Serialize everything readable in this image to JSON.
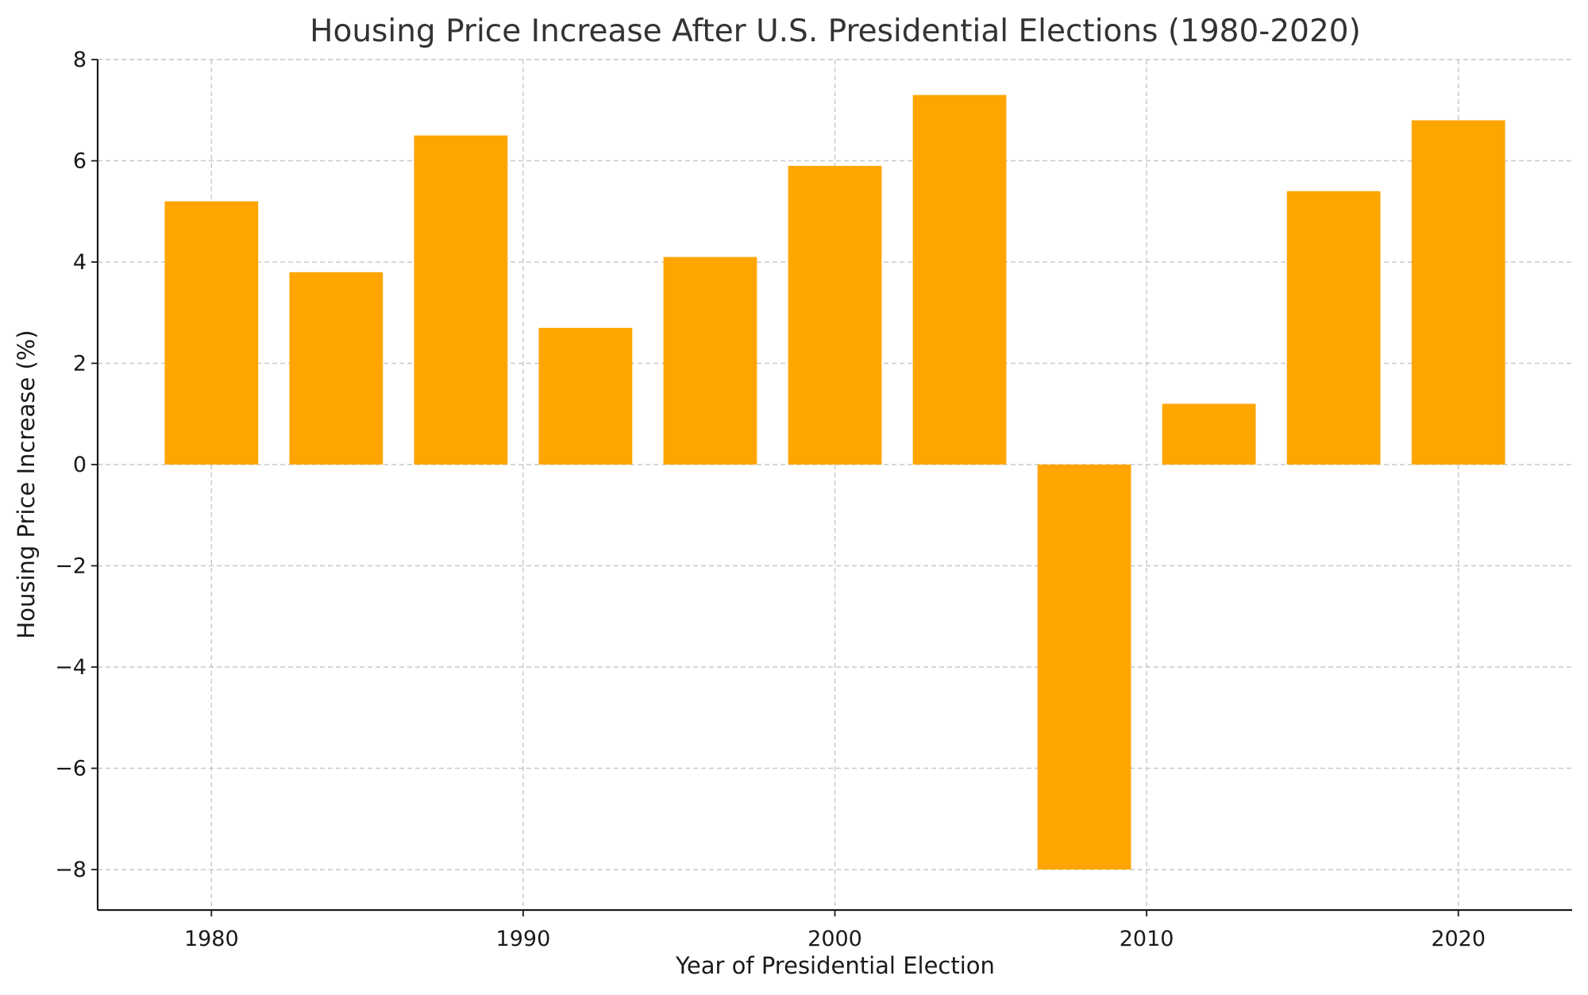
{
  "chart_data": {
    "type": "bar",
    "title": "Housing Price Increase After U.S. Presidential Elections (1980-2020)",
    "xlabel": "Year of Presidential Election",
    "ylabel": "Housing Price Increase (%)",
    "x": [
      1980,
      1984,
      1988,
      1992,
      1996,
      2000,
      2004,
      2008,
      2012,
      2016,
      2020
    ],
    "values": [
      5.2,
      3.8,
      6.5,
      2.7,
      4.1,
      5.9,
      7.3,
      -8.0,
      1.2,
      5.4,
      6.8
    ],
    "xlim": [
      1976.35,
      2023.65
    ],
    "ylim": [
      -8.8,
      8.0
    ],
    "xticks": [
      1980,
      1990,
      2000,
      2010,
      2020
    ],
    "yticks": [
      8,
      6,
      4,
      2,
      0,
      -2,
      -4,
      -6,
      -8
    ],
    "ytick_labels": [
      "8",
      "6",
      "4",
      "2",
      "0",
      "−2",
      "−4",
      "−6",
      "−8"
    ],
    "bar_width": 3,
    "bar_color": "#FFA500",
    "grid": true,
    "grid_style": "dashed",
    "legend": "none"
  }
}
